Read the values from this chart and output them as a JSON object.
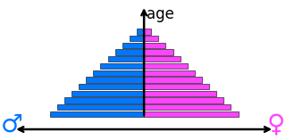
{
  "num_bars": 13,
  "male_color": "#0077ff",
  "female_color": "#ff44ff",
  "bar_edge_color": "#000000",
  "bar_linewidth": 0.4,
  "background_color": "#ffffff",
  "age_label": "age",
  "age_label_fontsize": 12,
  "male_symbol": "♂",
  "female_symbol": "♀",
  "symbol_fontsize": 20,
  "male_symbol_color": "#0077ff",
  "female_symbol_color": "#ff44ff",
  "figsize": [
    3.2,
    1.57
  ],
  "dpi": 100
}
